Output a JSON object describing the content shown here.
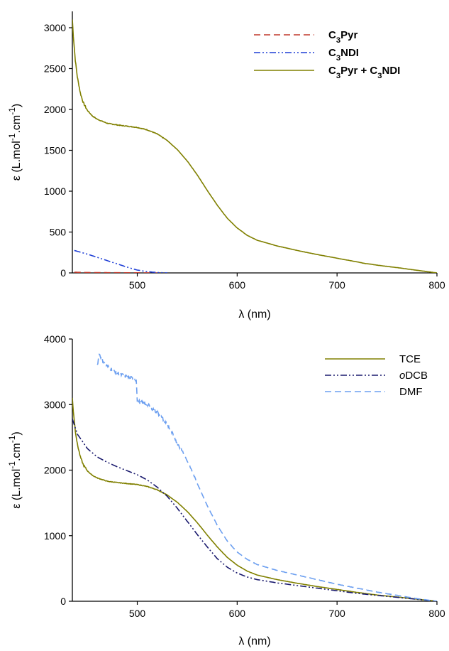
{
  "chart_data": [
    {
      "type": "line",
      "xlabel": "λ (nm)",
      "ylabel": "ε (L.mol-1.cm-1)",
      "ylabel_parts": [
        "ε (L.mol",
        "-1",
        ".cm",
        "-1",
        ")"
      ],
      "xlim": [
        435,
        800
      ],
      "ylim": [
        0,
        3200
      ],
      "xticks": [
        500,
        600,
        700,
        800
      ],
      "yticks": [
        0,
        500,
        1000,
        1500,
        2000,
        2500,
        3000
      ],
      "grid": false,
      "legend_position": "top-right",
      "legend_bold": true,
      "series": [
        {
          "name": "C3Pyr",
          "name_parts": [
            "C",
            "3",
            "Pyr"
          ],
          "color": "#c0392b",
          "dash": "dashed",
          "x": [
            437,
            450,
            470,
            490,
            510,
            520
          ],
          "y": [
            8,
            5,
            3,
            2,
            1,
            0
          ]
        },
        {
          "name": "C3NDI",
          "name_parts": [
            "C",
            "3",
            "NDI"
          ],
          "color": "#1f3fd6",
          "dash": "dash-dot-dot",
          "x": [
            437,
            450,
            460,
            470,
            480,
            490,
            500,
            510,
            520,
            530
          ],
          "y": [
            275,
            230,
            190,
            150,
            110,
            70,
            35,
            15,
            5,
            0
          ]
        },
        {
          "name": "C3Pyr + C3NDI",
          "name_parts": [
            "C",
            "3",
            "Pyr + C",
            "3",
            "NDI"
          ],
          "color": "#808000",
          "dash": "solid",
          "noise": true,
          "x": [
            435,
            436,
            438,
            440,
            443,
            446,
            450,
            455,
            460,
            470,
            480,
            490,
            500,
            510,
            520,
            530,
            540,
            550,
            560,
            570,
            580,
            590,
            600,
            610,
            620,
            640,
            660,
            680,
            700,
            720,
            728,
            732,
            740,
            760,
            780,
            800
          ],
          "y": [
            3100,
            2900,
            2600,
            2400,
            2200,
            2080,
            1990,
            1920,
            1880,
            1830,
            1810,
            1795,
            1780,
            1750,
            1700,
            1620,
            1510,
            1370,
            1200,
            1010,
            830,
            670,
            550,
            460,
            400,
            330,
            275,
            225,
            180,
            135,
            115,
            110,
            95,
            65,
            32,
            0
          ]
        }
      ]
    },
    {
      "type": "line",
      "xlabel": "λ (nm)",
      "ylabel": "ε (L.mol-1.cm-1)",
      "ylabel_parts": [
        "ε (L.mol",
        "-1",
        ".cm",
        "-1",
        ")"
      ],
      "xlim": [
        435,
        800
      ],
      "ylim": [
        0,
        4000
      ],
      "xticks": [
        500,
        600,
        700,
        800
      ],
      "yticks": [
        0,
        1000,
        2000,
        3000,
        4000
      ],
      "grid": false,
      "legend_position": "top-right",
      "legend_bold": false,
      "series": [
        {
          "name": "TCE",
          "name_parts": [
            "TCE"
          ],
          "color": "#808000",
          "dash": "solid",
          "noise": true,
          "x": [
            435,
            436,
            438,
            440,
            443,
            446,
            450,
            455,
            460,
            470,
            480,
            490,
            500,
            510,
            520,
            530,
            540,
            550,
            560,
            570,
            580,
            590,
            600,
            610,
            620,
            640,
            660,
            680,
            700,
            720,
            740,
            760,
            780,
            800
          ],
          "y": [
            3100,
            2900,
            2600,
            2400,
            2200,
            2080,
            1990,
            1920,
            1880,
            1830,
            1810,
            1795,
            1780,
            1750,
            1700,
            1620,
            1510,
            1370,
            1200,
            1010,
            830,
            670,
            550,
            460,
            400,
            330,
            275,
            225,
            180,
            135,
            95,
            65,
            32,
            0
          ]
        },
        {
          "name": "oDCB",
          "name_parts": [
            "o",
            "DCB"
          ],
          "color": "#1a1a6e",
          "dash": "dash-dot-dot",
          "x": [
            435,
            440,
            450,
            460,
            470,
            480,
            490,
            500,
            510,
            520,
            530,
            540,
            550,
            560,
            570,
            580,
            590,
            600,
            610,
            620,
            640,
            660,
            680,
            700,
            720,
            740,
            760,
            780,
            800
          ],
          "y": [
            2780,
            2550,
            2330,
            2200,
            2120,
            2050,
            1990,
            1930,
            1850,
            1740,
            1600,
            1420,
            1220,
            1020,
            830,
            650,
            520,
            430,
            370,
            330,
            280,
            240,
            200,
            160,
            120,
            90,
            60,
            30,
            0
          ]
        },
        {
          "name": "DMF",
          "name_parts": [
            "DMF"
          ],
          "color": "#6c9ff0",
          "dash": "dashed",
          "noise": true,
          "x": [
            460,
            462,
            465,
            470,
            480,
            490,
            499,
            500,
            505,
            510,
            520,
            530,
            535,
            540,
            545,
            550,
            555,
            560,
            570,
            580,
            590,
            600,
            610,
            620,
            640,
            660,
            680,
            700,
            720,
            740,
            760,
            780,
            800
          ],
          "y": [
            3600,
            3780,
            3680,
            3580,
            3480,
            3420,
            3380,
            3050,
            3030,
            3000,
            2880,
            2700,
            2560,
            2420,
            2300,
            2140,
            1980,
            1800,
            1460,
            1160,
            920,
            750,
            640,
            560,
            470,
            400,
            330,
            260,
            200,
            140,
            90,
            40,
            0
          ]
        }
      ]
    }
  ]
}
